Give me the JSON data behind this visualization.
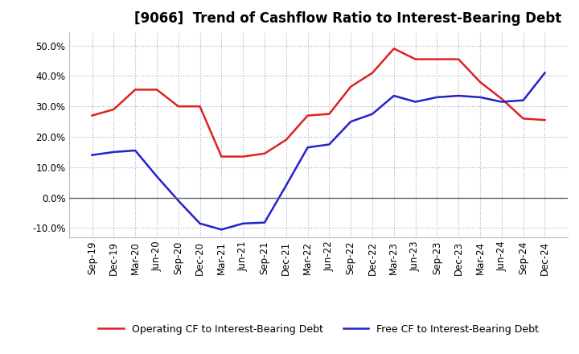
{
  "title": "[9066]  Trend of Cashflow Ratio to Interest-Bearing Debt",
  "x_labels": [
    "Sep-19",
    "Dec-19",
    "Mar-20",
    "Jun-20",
    "Sep-20",
    "Dec-20",
    "Mar-21",
    "Jun-21",
    "Sep-21",
    "Dec-21",
    "Mar-22",
    "Jun-22",
    "Sep-22",
    "Dec-22",
    "Mar-23",
    "Jun-23",
    "Sep-23",
    "Dec-23",
    "Mar-24",
    "Jun-24",
    "Sep-24",
    "Dec-24"
  ],
  "operating_cf": [
    0.27,
    0.29,
    0.355,
    0.355,
    0.3,
    0.3,
    0.135,
    0.135,
    0.145,
    0.19,
    0.27,
    0.275,
    0.365,
    0.41,
    0.49,
    0.455,
    0.455,
    0.455,
    0.38,
    0.325,
    0.26,
    0.255
  ],
  "free_cf": [
    0.14,
    0.15,
    0.155,
    0.07,
    -0.01,
    -0.085,
    -0.105,
    -0.085,
    -0.082,
    0.04,
    0.165,
    0.175,
    0.25,
    0.275,
    0.335,
    0.315,
    0.33,
    0.335,
    0.33,
    0.315,
    0.32,
    0.41
  ],
  "operating_cf_color": "#dd2222",
  "free_cf_color": "#2222cc",
  "background_color": "#ffffff",
  "plot_bg_color": "#ffffff",
  "grid_color": "#aaaacc",
  "ylim": [
    -0.13,
    0.545
  ],
  "yticks": [
    -0.1,
    0.0,
    0.1,
    0.2,
    0.3,
    0.4,
    0.5
  ],
  "legend_operating": "Operating CF to Interest-Bearing Debt",
  "legend_free": "Free CF to Interest-Bearing Debt",
  "zero_line_color": "#666666",
  "title_fontsize": 12,
  "tick_fontsize": 8.5,
  "legend_fontsize": 9
}
